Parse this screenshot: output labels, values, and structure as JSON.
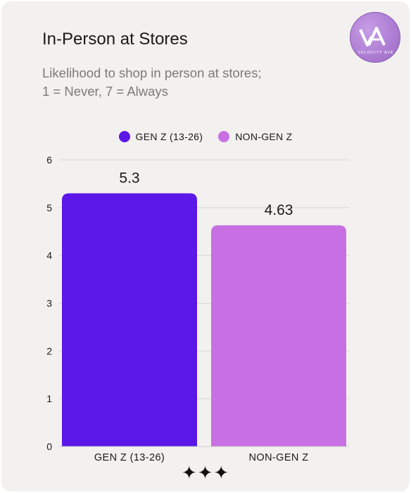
{
  "chart_data": {
    "type": "bar",
    "title": "In-Person at Stores",
    "subtitle_lines": [
      "Likelihood to shop in person at stores;",
      "1 = Never, 7 = Always"
    ],
    "categories": [
      "GEN Z (13-26)",
      "NON-GEN Z"
    ],
    "values": [
      5.3,
      4.63
    ],
    "value_labels": [
      "5.3",
      "4.63"
    ],
    "colors": [
      "#5b16e8",
      "#c96fe4"
    ],
    "legend": [
      {
        "name": "GEN Z (13-26)",
        "color": "#5b16e8"
      },
      {
        "name": "NON-GEN Z",
        "color": "#c96fe4"
      }
    ],
    "legend_position": "top-center",
    "ylim": [
      0,
      6
    ],
    "yticks": [
      0,
      1,
      2,
      3,
      4,
      5,
      6
    ],
    "grid": true,
    "xlabel": "",
    "ylabel": ""
  },
  "brand": {
    "logo_text": "VELOCITY AVE",
    "logo_color": "#b07fd8"
  },
  "decoration": {
    "stars": "✦✦✦"
  }
}
